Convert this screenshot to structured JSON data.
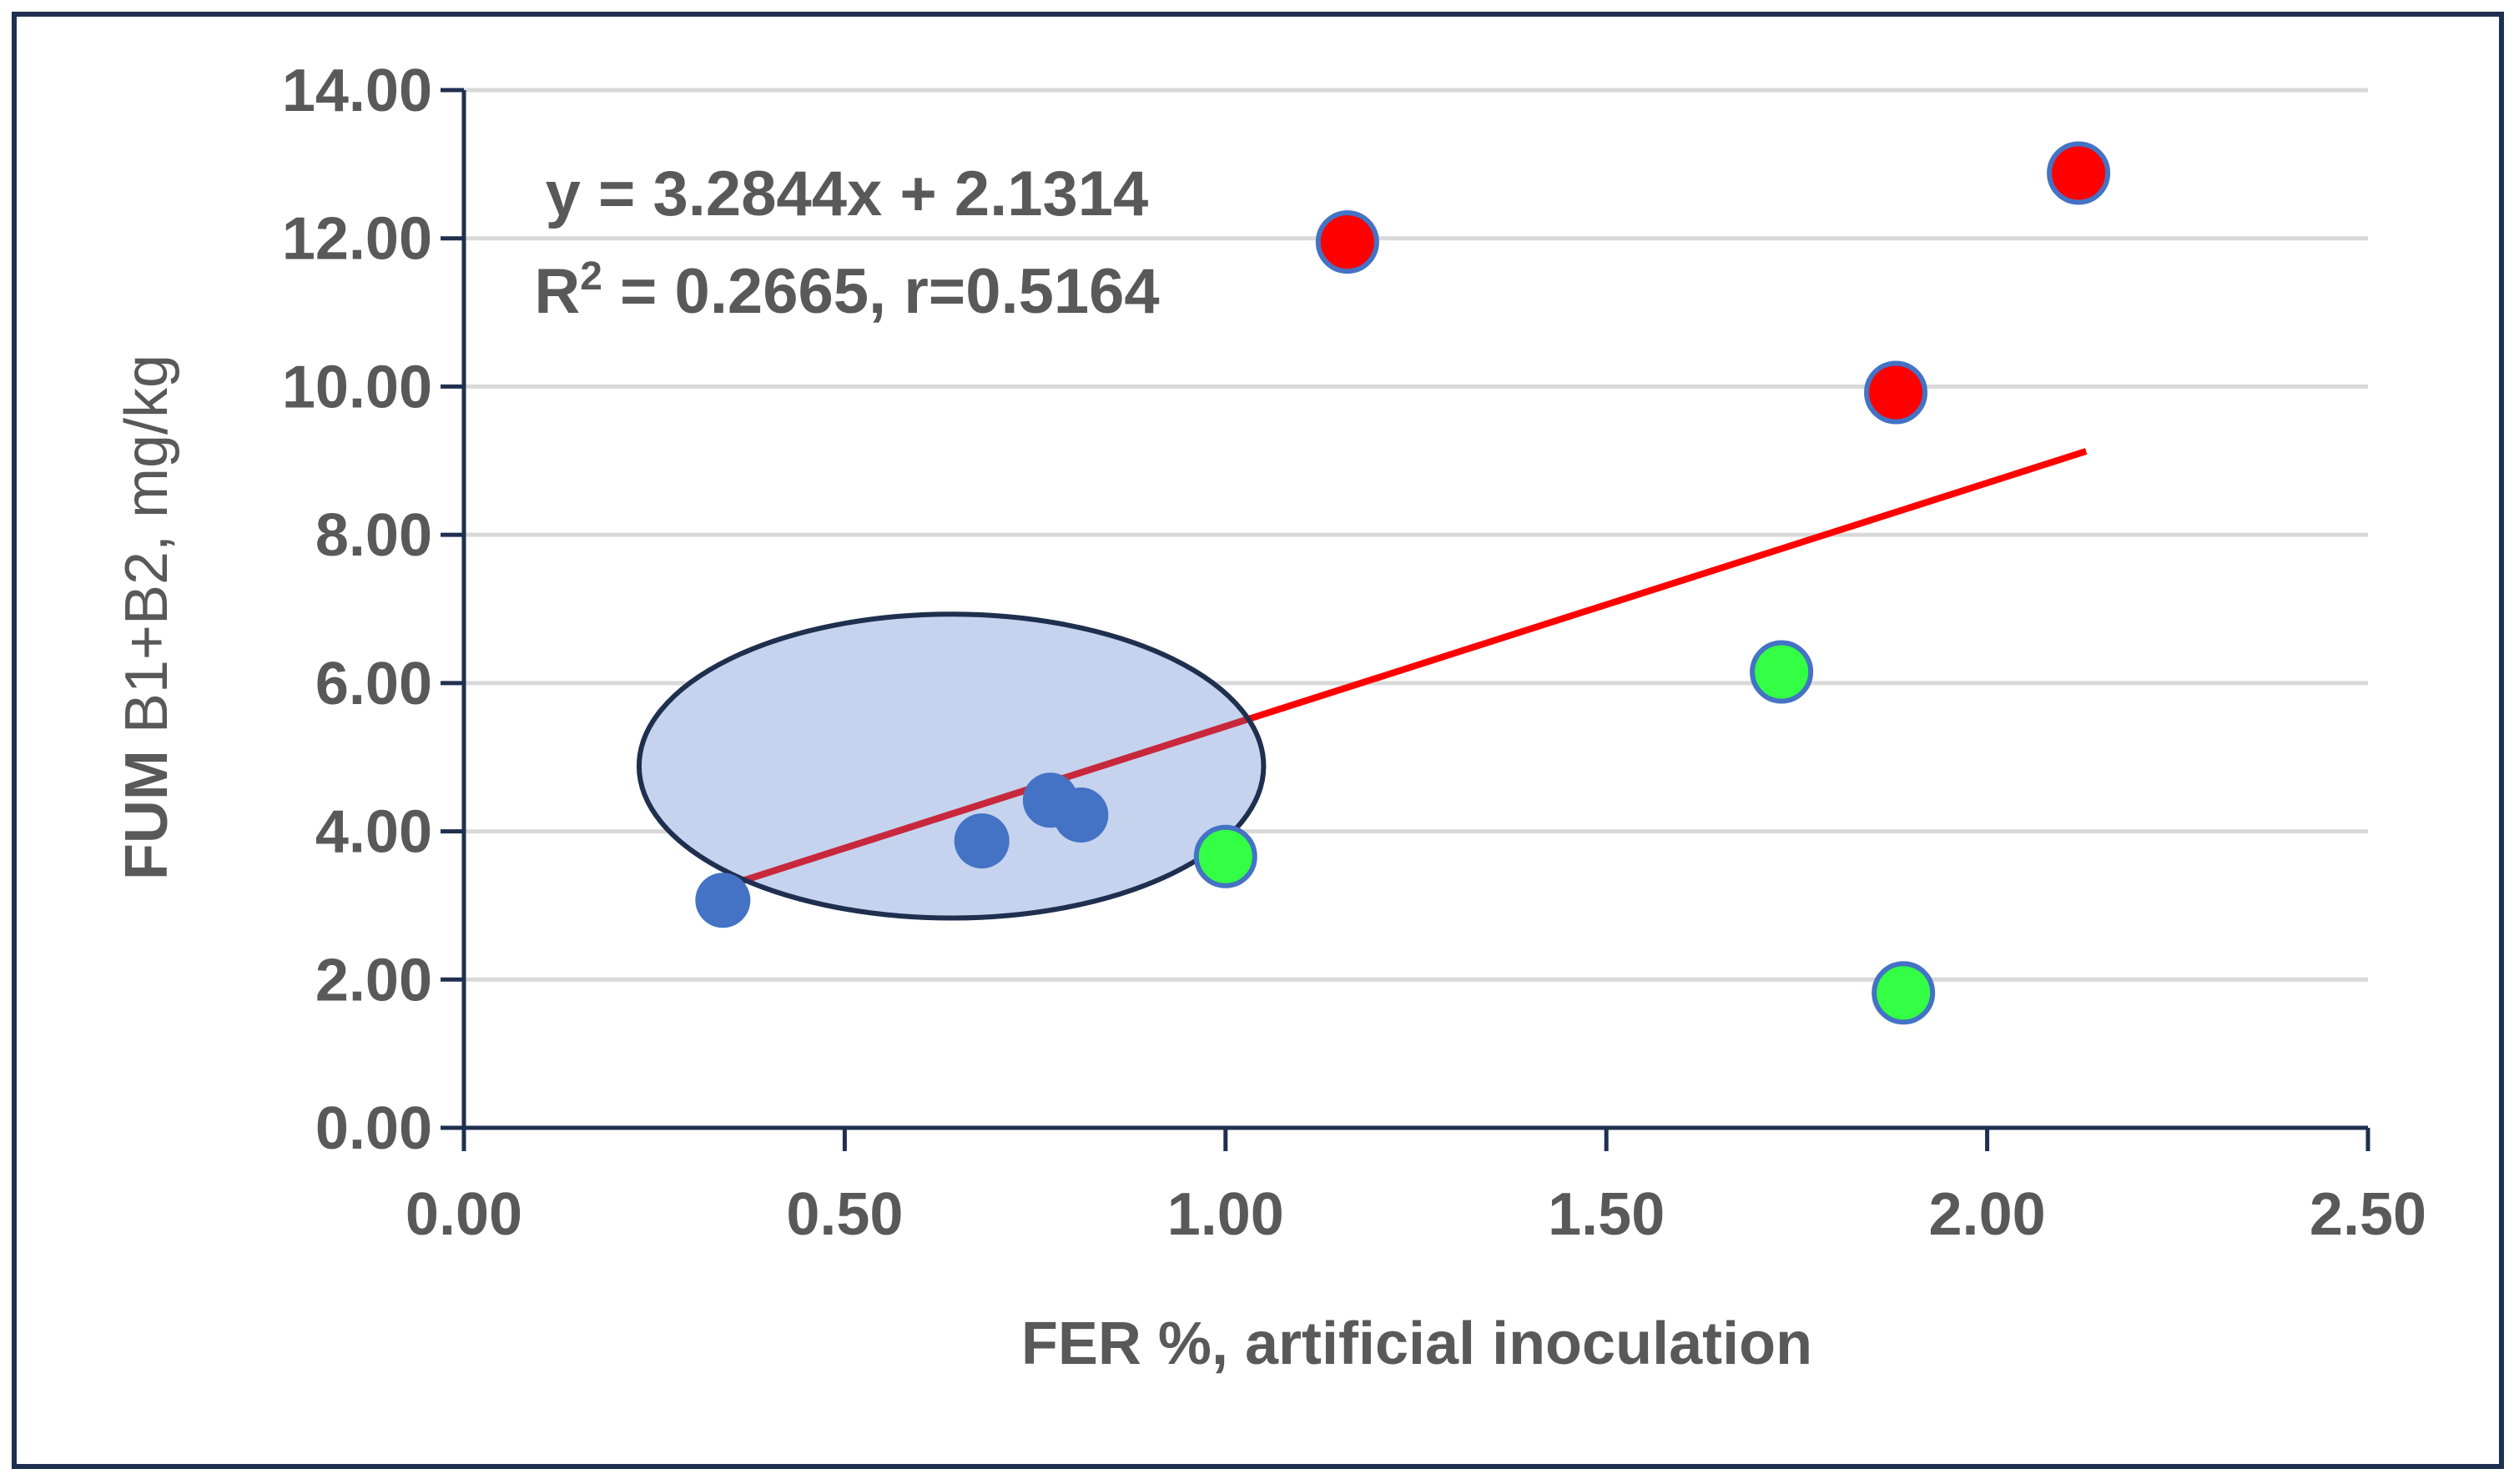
{
  "chart_data": {
    "type": "scatter",
    "title": "",
    "xlabel": "FER %, artificial inoculation",
    "ylabel_bold": "FUM",
    "ylabel_rest": " B1+B2, mg/kg",
    "xlim": [
      0,
      2.5
    ],
    "ylim": [
      0,
      14
    ],
    "x_ticks": [
      "0.00",
      "0.50",
      "1.00",
      "1.50",
      "2.00",
      "2.50"
    ],
    "y_ticks": [
      "0.00",
      "2.00",
      "4.00",
      "6.00",
      "8.00",
      "10.00",
      "12.00",
      "14.00"
    ],
    "grid": true,
    "series": [
      {
        "name": "blue",
        "color": "#4472c4",
        "points": [
          [
            0.34,
            3.07
          ],
          [
            0.68,
            3.87
          ],
          [
            0.77,
            4.42
          ],
          [
            0.81,
            4.22
          ]
        ]
      },
      {
        "name": "green",
        "color": "#33ff44",
        "points": [
          [
            1.0,
            3.66
          ],
          [
            1.73,
            6.15
          ],
          [
            1.89,
            1.82
          ]
        ]
      },
      {
        "name": "red",
        "color": "#ff0000",
        "points": [
          [
            1.16,
            11.95
          ],
          [
            1.88,
            9.92
          ],
          [
            2.12,
            12.88
          ]
        ]
      }
    ],
    "trendline": {
      "slope": 3.2844,
      "intercept": 2.1314,
      "x_range": [
        0.34,
        2.13
      ],
      "color": "#ff0000"
    },
    "annotations": {
      "equation": "y = 3.2844x + 2.1314",
      "r_squared_prefix": "R",
      "r_squared_sup": "2",
      "r_squared_rest": " = 0.2665, r=0.5164"
    },
    "highlight_ellipse": {
      "cx": 0.64,
      "cy": 4.88,
      "rx": 0.41,
      "ry": 2.05,
      "fill": "#c5d3ee",
      "stroke": "#1f2f4f"
    }
  }
}
